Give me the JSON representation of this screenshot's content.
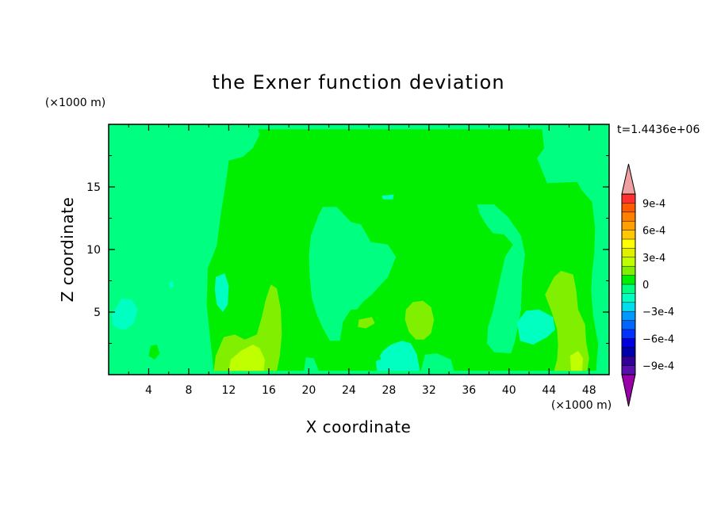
{
  "chart_data": {
    "type": "heatmap",
    "title": "the Exner function deviation",
    "xlabel": "X coordinate",
    "ylabel": "Z coordinate",
    "x_unit": "(×1000 m)",
    "y_unit": "(×1000 m)",
    "time_label": "t=1.4436e+06",
    "xlim": [
      0,
      50
    ],
    "ylim": [
      0,
      20
    ],
    "x_ticks": [
      "4",
      "8",
      "12",
      "16",
      "20",
      "24",
      "28",
      "32",
      "36",
      "40",
      "44",
      "48"
    ],
    "x_tick_values": [
      4,
      8,
      12,
      16,
      20,
      24,
      28,
      32,
      36,
      40,
      44,
      48
    ],
    "y_ticks": [
      "5",
      "10",
      "15"
    ],
    "y_tick_values": [
      5,
      10,
      15
    ],
    "colorbar": {
      "labels": [
        "9e-4",
        "6e-4",
        "3e-4",
        "0",
        "−3e-4",
        "−6e-4",
        "−9e-4"
      ],
      "label_values": [
        0.0009,
        0.0006,
        0.0003,
        0,
        -0.0003,
        -0.0006,
        -0.0009
      ],
      "levels": [
        0.001,
        0.0009,
        0.0008,
        0.0007,
        0.0006,
        0.0005,
        0.0004,
        0.0003,
        0.0002,
        0.0001,
        0,
        -0.0001,
        -0.0002,
        -0.0003,
        -0.0004,
        -0.0005,
        -0.0006,
        -0.0007,
        -0.0008,
        -0.0009,
        -0.001
      ],
      "colors_top_to_bottom": [
        "#ff3030",
        "#ff5a00",
        "#ff7f00",
        "#ffa000",
        "#ffc800",
        "#ffff00",
        "#e0f000",
        "#c0ff00",
        "#80f000",
        "#00ee00",
        "#00ff80",
        "#00ffc0",
        "#00ddee",
        "#0099ff",
        "#0066ff",
        "#0033ff",
        "#0000dd",
        "#0000aa",
        "#330099",
        "#5511aa"
      ],
      "over_color": "#f0a0a0",
      "under_color": "#9900aa"
    },
    "background_value": -5e-05,
    "regions": [
      {
        "value": 5e-05,
        "points": [
          [
            10.5,
            0.3
          ],
          [
            10.2,
            2.5
          ],
          [
            9.8,
            5.5
          ],
          [
            9.9,
            8.5
          ],
          [
            10.8,
            10.3
          ],
          [
            11.2,
            12.8
          ],
          [
            11.8,
            15.8
          ],
          [
            12,
            17.1
          ],
          [
            13.4,
            17.4
          ],
          [
            14.4,
            18.1
          ],
          [
            15.1,
            19.2
          ],
          [
            14.9,
            19.6
          ],
          [
            40,
            19.6
          ],
          [
            43.3,
            19.6
          ],
          [
            43.5,
            18.1
          ],
          [
            42.8,
            17.3
          ],
          [
            43.4,
            16.1
          ],
          [
            43.8,
            15.3
          ],
          [
            46.8,
            15.4
          ],
          [
            47.3,
            14.7
          ],
          [
            48.3,
            13.8
          ],
          [
            48.6,
            11.7
          ],
          [
            48.5,
            9.6
          ],
          [
            48.3,
            8.2
          ],
          [
            48.2,
            6.7
          ],
          [
            48.4,
            4.7
          ],
          [
            48.9,
            2.5
          ],
          [
            48.7,
            0.3
          ]
        ]
      },
      {
        "value": -5e-05,
        "points": [
          [
            21,
            12.8
          ],
          [
            21.4,
            13.4
          ],
          [
            22.8,
            13.4
          ],
          [
            24.2,
            12.2
          ],
          [
            25.2,
            12
          ],
          [
            26.2,
            10.6
          ],
          [
            27.9,
            10.4
          ],
          [
            28.3,
            9.9
          ],
          [
            28.7,
            9.4
          ],
          [
            28.3,
            8.6
          ],
          [
            27.9,
            7.8
          ],
          [
            27.2,
            7.2
          ],
          [
            26.3,
            6.4
          ],
          [
            25.4,
            5.8
          ],
          [
            24.8,
            5.2
          ],
          [
            24.2,
            5.2
          ],
          [
            23.4,
            4.2
          ],
          [
            23.2,
            3.2
          ],
          [
            23.1,
            2.7
          ],
          [
            22.1,
            2.7
          ],
          [
            21.4,
            3.7
          ],
          [
            20.8,
            4.8
          ],
          [
            20.3,
            6.1
          ],
          [
            20.1,
            7.7
          ],
          [
            20,
            9.5
          ],
          [
            20.2,
            11.1
          ]
        ]
      },
      {
        "value": -5e-05,
        "points": [
          [
            36.8,
            13.6
          ],
          [
            37.1,
            12.8
          ],
          [
            37.7,
            12
          ],
          [
            38.4,
            11.3
          ],
          [
            39.5,
            11.2
          ],
          [
            40.4,
            10.4
          ],
          [
            39.6,
            9.4
          ],
          [
            39.1,
            7.6
          ],
          [
            38.4,
            5.1
          ],
          [
            37.9,
            3.8
          ],
          [
            37.8,
            2.5
          ],
          [
            38.5,
            1.8
          ],
          [
            40.2,
            1.7
          ],
          [
            40.6,
            2.7
          ],
          [
            41.2,
            5.2
          ],
          [
            41.3,
            7.7
          ],
          [
            41.6,
            9.6
          ],
          [
            41.2,
            11.1
          ],
          [
            39.9,
            12.6
          ],
          [
            38.5,
            13.6
          ]
        ]
      },
      {
        "value": -5e-05,
        "points": [
          [
            0.7,
            4.4
          ],
          [
            0.4,
            2.5
          ],
          [
            0.5,
            0.3
          ],
          [
            0.2,
            0.3
          ],
          [
            0.2,
            4.6
          ]
        ]
      },
      {
        "value": -5e-05,
        "points": [
          [
            19.5,
            0.3
          ],
          [
            21,
            0.3
          ],
          [
            20.5,
            1.3
          ],
          [
            19.7,
            1.4
          ]
        ]
      },
      {
        "value": -5e-05,
        "points": [
          [
            31.2,
            0.3
          ],
          [
            34.5,
            0.3
          ],
          [
            34.2,
            1.2
          ],
          [
            32.8,
            1.7
          ],
          [
            31.6,
            1.6
          ]
        ]
      },
      {
        "value": 5e-05,
        "points": [
          [
            4.2,
            2.3
          ],
          [
            4.8,
            2.4
          ],
          [
            5.1,
            1.7
          ],
          [
            4.6,
            1.2
          ],
          [
            4.0,
            1.5
          ]
        ]
      },
      {
        "value": 5e-05,
        "points": [
          [
            14.7,
            10.2
          ],
          [
            15.4,
            10.1
          ],
          [
            15.8,
            9.3
          ],
          [
            15.2,
            9.0
          ],
          [
            14.6,
            9.3
          ]
        ]
      },
      {
        "value": 0.00015,
        "points": [
          [
            11.5,
            3.0
          ],
          [
            12.6,
            3.2
          ],
          [
            13.6,
            2.8
          ],
          [
            14.8,
            3.2
          ],
          [
            15.3,
            4.6
          ],
          [
            15.7,
            6.0
          ],
          [
            16.2,
            7.2
          ],
          [
            16.8,
            6.9
          ],
          [
            17.2,
            5.2
          ],
          [
            17.3,
            3.2
          ],
          [
            17.1,
            1.5
          ],
          [
            16.8,
            0.3
          ],
          [
            10.5,
            0.3
          ],
          [
            10.7,
            1.5
          ]
        ]
      },
      {
        "value": 0.00025,
        "points": [
          [
            12.2,
            1.2
          ],
          [
            13.2,
            1.9
          ],
          [
            14.4,
            2.4
          ],
          [
            15.1,
            2.1
          ],
          [
            15.6,
            1.2
          ],
          [
            15.5,
            0.3
          ],
          [
            12.0,
            0.3
          ]
        ]
      },
      {
        "value": 0.00015,
        "points": [
          [
            29.6,
            4.4
          ],
          [
            29.7,
            5.2
          ],
          [
            30.4,
            5.8
          ],
          [
            31.4,
            5.9
          ],
          [
            32.2,
            5.4
          ],
          [
            32.5,
            4.4
          ],
          [
            32.2,
            3.3
          ],
          [
            31.5,
            2.8
          ],
          [
            30.7,
            2.8
          ],
          [
            30.0,
            3.4
          ]
        ]
      },
      {
        "value": 0.00015,
        "points": [
          [
            43.6,
            6.4
          ],
          [
            44.5,
            7.8
          ],
          [
            45.2,
            8.3
          ],
          [
            46.4,
            8.0
          ],
          [
            46.7,
            6.8
          ],
          [
            46.9,
            5.2
          ],
          [
            47.6,
            4.0
          ],
          [
            47.7,
            2.6
          ],
          [
            48,
            1.3
          ],
          [
            47.8,
            0.3
          ],
          [
            44.5,
            0.3
          ],
          [
            44.8,
            1.2
          ],
          [
            44.9,
            2.4
          ],
          [
            44.8,
            3.6
          ],
          [
            44.3,
            4.9
          ]
        ]
      },
      {
        "value": 0.00025,
        "points": [
          [
            46.1,
            1.5
          ],
          [
            46.9,
            1.9
          ],
          [
            47.4,
            1.3
          ],
          [
            47.3,
            0.3
          ],
          [
            46.2,
            0.3
          ]
        ]
      },
      {
        "value": 0.00015,
        "points": [
          [
            25.0,
            4.4
          ],
          [
            26.3,
            4.6
          ],
          [
            26.6,
            4.1
          ],
          [
            25.7,
            3.7
          ],
          [
            24.9,
            3.8
          ]
        ]
      },
      {
        "value": -0.00015,
        "points": [
          [
            0.3,
            4.8
          ],
          [
            1.3,
            6.1
          ],
          [
            2.3,
            6.0
          ],
          [
            2.9,
            5.2
          ],
          [
            2.5,
            4.1
          ],
          [
            1.7,
            3.6
          ],
          [
            1.1,
            3.6
          ],
          [
            0.4,
            4.0
          ]
        ]
      },
      {
        "value": -0.00015,
        "points": [
          [
            10.7,
            7.8
          ],
          [
            11.6,
            8.1
          ],
          [
            12.0,
            7.1
          ],
          [
            11.9,
            5.6
          ],
          [
            11.4,
            5.0
          ],
          [
            10.8,
            5.6
          ],
          [
            10.6,
            6.8
          ]
        ]
      },
      {
        "value": -0.00015,
        "points": [
          [
            40.8,
            4.2
          ],
          [
            41.7,
            5.1
          ],
          [
            43.0,
            5.2
          ],
          [
            44.4,
            4.6
          ],
          [
            44.6,
            3.6
          ],
          [
            43.8,
            3.0
          ],
          [
            42.4,
            2.4
          ],
          [
            41.1,
            2.7
          ]
        ]
      },
      {
        "value": -0.00015,
        "points": [
          [
            26.8,
            0.3
          ],
          [
            26.7,
            1.0
          ],
          [
            27.4,
            1.9
          ],
          [
            28.2,
            2.4
          ],
          [
            29.3,
            2.7
          ],
          [
            30.2,
            2.5
          ],
          [
            30.8,
            1.6
          ],
          [
            31.1,
            0.3
          ]
        ]
      },
      {
        "value": -0.00015,
        "points": [
          [
            6.0,
            7.4
          ],
          [
            6.4,
            7.5
          ],
          [
            6.5,
            7.0
          ],
          [
            6.1,
            6.9
          ]
        ]
      },
      {
        "value": -0.00015,
        "points": [
          [
            27.3,
            14.3
          ],
          [
            28.5,
            14.4
          ],
          [
            28.4,
            14.0
          ],
          [
            27.4,
            14.0
          ]
        ]
      },
      {
        "value": 5e-05,
        "points": [
          [
            26.3,
            1.6
          ],
          [
            27.0,
            1.8
          ],
          [
            27.2,
            1.2
          ],
          [
            26.5,
            1.1
          ]
        ]
      }
    ]
  }
}
